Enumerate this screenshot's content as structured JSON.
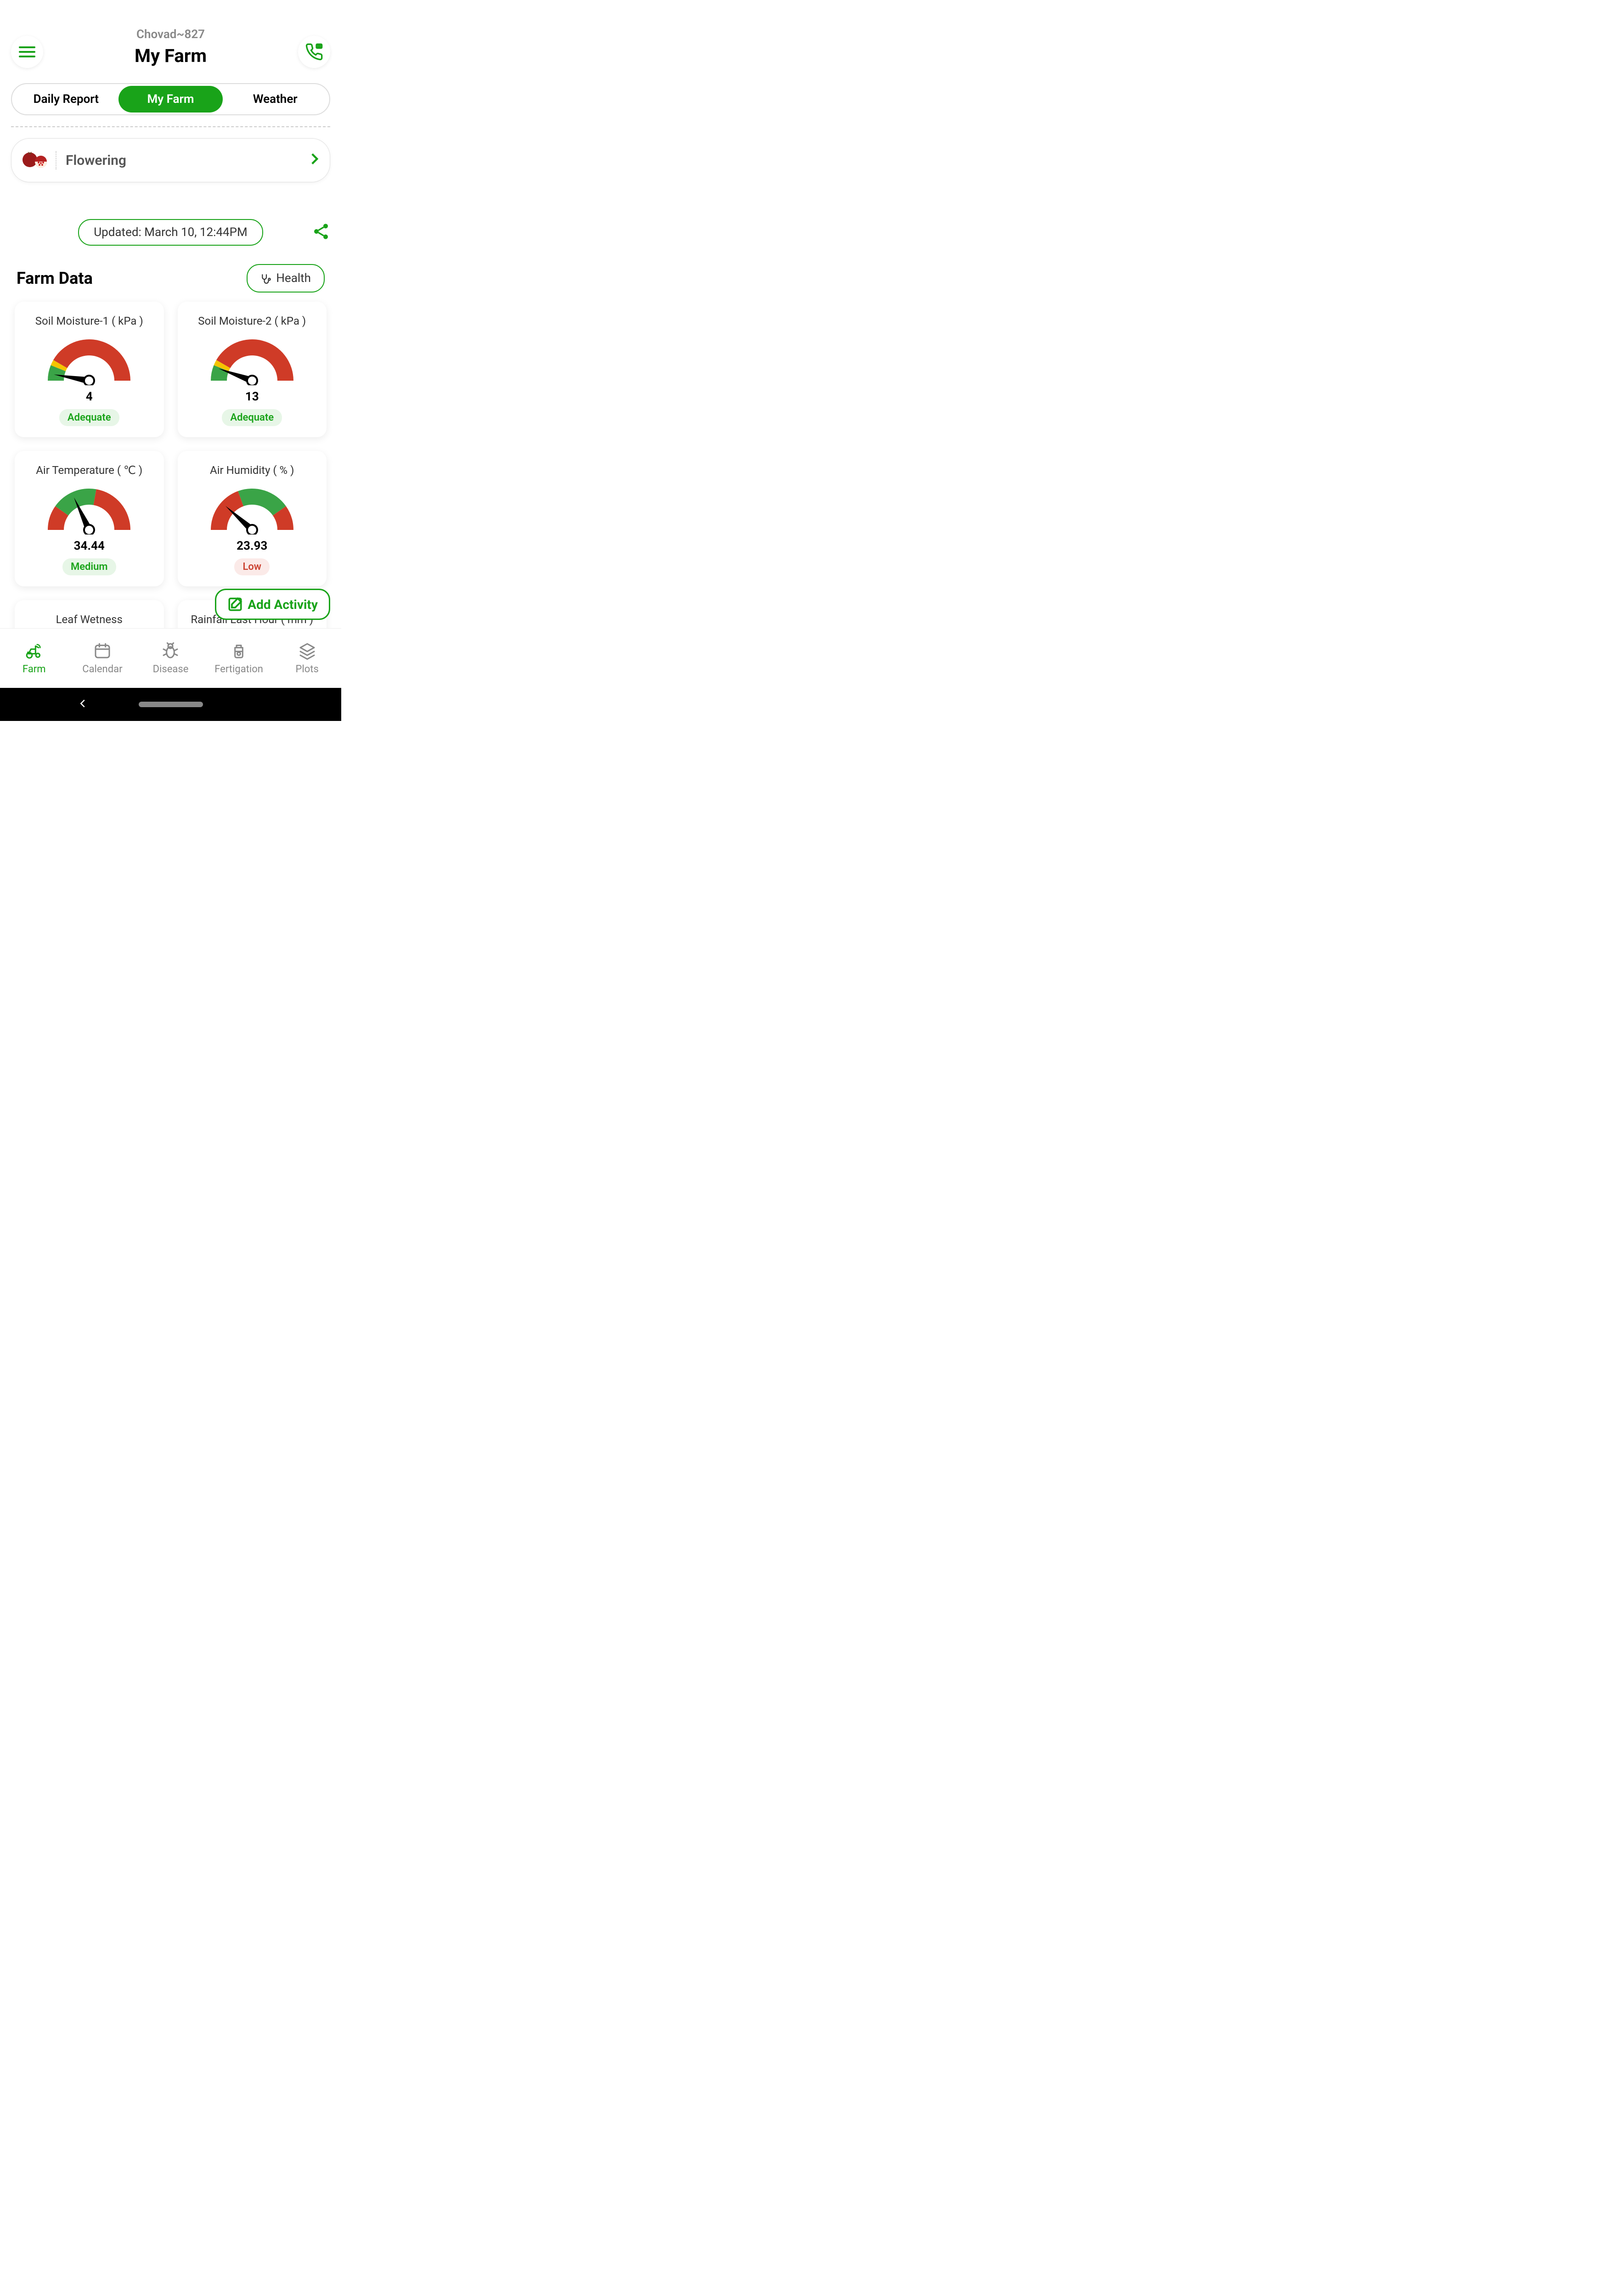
{
  "colors": {
    "primary": "#19a319",
    "red": "#cf3b27",
    "yellow": "#f5c500",
    "green": "#3aa447",
    "status_good": "#19a319",
    "status_bad": "#cc4433",
    "status_good_bg": "#e7f6e7",
    "status_bad_bg": "#fbeae8"
  },
  "header": {
    "farm_name": "Chovad~827",
    "title": "My Farm"
  },
  "tabs": [
    {
      "label": "Daily Report",
      "active": false
    },
    {
      "label": "My Farm",
      "active": true
    },
    {
      "label": "Weather",
      "active": false
    }
  ],
  "stage": {
    "label": "Flowering"
  },
  "updated": "Updated: March 10, 12:44PM",
  "section_title": "Farm Data",
  "health_label": "Health",
  "add_activity_label": "Add Activity",
  "cards": [
    {
      "title": "Soil Moisture-1 ( kPa )",
      "value": "4",
      "status": "Adequate",
      "status_color": "#19a319",
      "status_bg": "#e7f6e7",
      "gauge_type": "moisture",
      "needle_angle": -80,
      "segments": [
        {
          "start": -90,
          "end": -68,
          "color": "#3aa447"
        },
        {
          "start": -68,
          "end": -60,
          "color": "#f5c500"
        },
        {
          "start": -60,
          "end": 90,
          "color": "#cf3b27"
        }
      ]
    },
    {
      "title": "Soil Moisture-2 ( kPa )",
      "value": "13",
      "status": "Adequate",
      "status_color": "#19a319",
      "status_bg": "#e7f6e7",
      "gauge_type": "moisture",
      "needle_angle": -70,
      "segments": [
        {
          "start": -90,
          "end": -68,
          "color": "#3aa447"
        },
        {
          "start": -68,
          "end": -60,
          "color": "#f5c500"
        },
        {
          "start": -60,
          "end": 90,
          "color": "#cf3b27"
        }
      ]
    },
    {
      "title": "Air Temperature ( ℃ )",
      "value": "34.44",
      "status": "Medium",
      "status_color": "#19a319",
      "status_bg": "#e7f6e7",
      "gauge_type": "temp",
      "needle_angle": -25,
      "segments": [
        {
          "start": -90,
          "end": -55,
          "color": "#cf3b27"
        },
        {
          "start": -55,
          "end": 10,
          "color": "#3aa447"
        },
        {
          "start": 10,
          "end": 90,
          "color": "#cf3b27"
        }
      ]
    },
    {
      "title": "Air Humidity ( % )",
      "value": "23.93",
      "status": "Low",
      "status_color": "#cc4433",
      "status_bg": "#fbeae8",
      "gauge_type": "humidity",
      "needle_angle": -48,
      "segments": [
        {
          "start": -90,
          "end": -20,
          "color": "#cf3b27"
        },
        {
          "start": -20,
          "end": 55,
          "color": "#3aa447"
        },
        {
          "start": 55,
          "end": 90,
          "color": "#cf3b27"
        }
      ]
    },
    {
      "title": "Leaf Wetness",
      "value": "",
      "status": "",
      "gauge_type": "none"
    },
    {
      "title": "Rainfall Last Hour ( mm )",
      "value": "",
      "status": "",
      "gauge_type": "none"
    }
  ],
  "nav": [
    {
      "label": "Farm",
      "active": true,
      "icon": "tractor"
    },
    {
      "label": "Calendar",
      "active": false,
      "icon": "calendar"
    },
    {
      "label": "Disease",
      "active": false,
      "icon": "bug"
    },
    {
      "label": "Fertigation",
      "active": false,
      "icon": "jar"
    },
    {
      "label": "Plots",
      "active": false,
      "icon": "layers"
    }
  ]
}
